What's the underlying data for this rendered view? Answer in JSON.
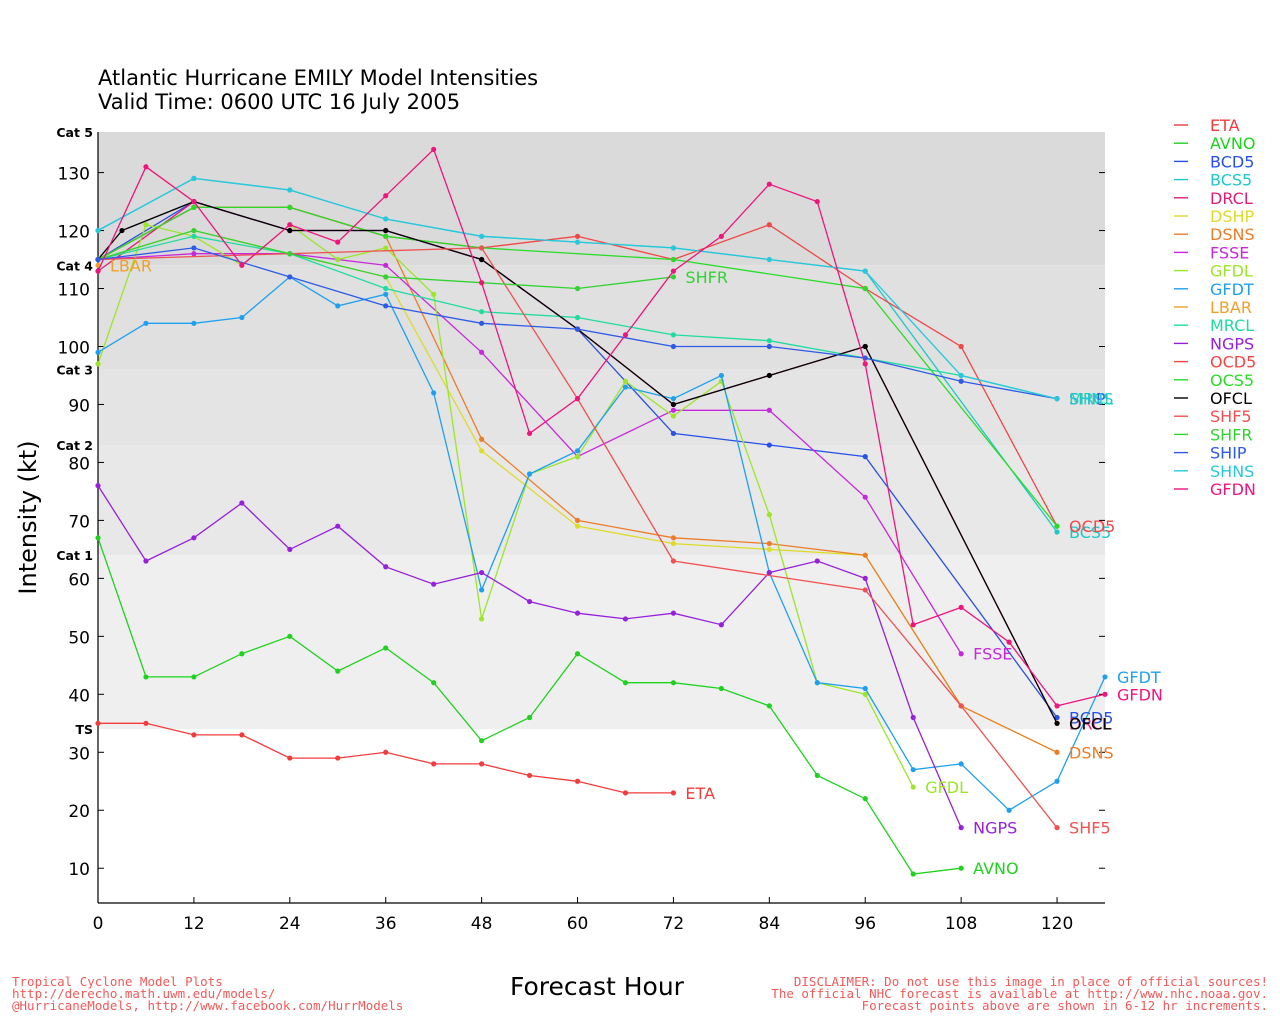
{
  "title": {
    "line1": "Atlantic Hurricane EMILY Model Intensities",
    "line2": "Valid Time: 0600 UTC 16 July 2005"
  },
  "footer": {
    "left": [
      "Tropical Cyclone Model Plots",
      "http://derecho.math.uwm.edu/models/",
      "@HurricaneModels, http://www.facebook.com/HurrModels"
    ],
    "center": "Forecast Hour",
    "right": [
      "DISCLAIMER: Do not use this image in place of official sources!",
      "The official NHC forecast is available at http://www.nhc.noaa.gov.",
      "Forecast points above are shown in 6-12 hr increments."
    ]
  },
  "chart_data": {
    "type": "line",
    "title": "Atlantic Hurricane EMILY Model Intensities",
    "subtitle": "Valid Time: 0600 UTC 16 July 2005",
    "xlabel": "Forecast Hour",
    "ylabel": "Intensity (kt)",
    "xlim": [
      0,
      126
    ],
    "ylim": [
      4,
      137
    ],
    "xticks": [
      0,
      12,
      24,
      36,
      48,
      60,
      72,
      84,
      96,
      108,
      120
    ],
    "yticks": [
      10,
      20,
      30,
      40,
      50,
      60,
      70,
      80,
      90,
      100,
      110,
      120,
      130
    ],
    "legend_position": "right",
    "category_bands": [
      {
        "label": "TS",
        "min": 34,
        "max": 64,
        "color": "#efefef"
      },
      {
        "label": "Cat 1",
        "min": 64,
        "max": 83,
        "color": "#e8e8e8"
      },
      {
        "label": "Cat 2",
        "min": 83,
        "max": 96,
        "color": "#e4e4e4"
      },
      {
        "label": "Cat 3",
        "min": 96,
        "max": 114,
        "color": "#e0e0e0"
      },
      {
        "label": "Cat 4",
        "min": 114,
        "max": 137,
        "color": "#dadada"
      },
      {
        "label": "Cat 5",
        "min": 137,
        "max": 137,
        "color": "#dadada"
      }
    ],
    "series": [
      {
        "name": "ETA",
        "color": "#f03c3c",
        "end_label": "ETA",
        "points": [
          [
            0,
            35
          ],
          [
            6,
            35
          ],
          [
            12,
            33
          ],
          [
            18,
            33
          ],
          [
            24,
            29
          ],
          [
            30,
            29
          ],
          [
            36,
            30
          ],
          [
            42,
            28
          ],
          [
            48,
            28
          ],
          [
            54,
            26
          ],
          [
            60,
            25
          ],
          [
            66,
            23
          ],
          [
            72,
            23
          ]
        ]
      },
      {
        "name": "AVNO",
        "color": "#1ed21e",
        "end_label": "AVNO",
        "points": [
          [
            0,
            67
          ],
          [
            6,
            43
          ],
          [
            12,
            43
          ],
          [
            18,
            47
          ],
          [
            24,
            50
          ],
          [
            30,
            44
          ],
          [
            36,
            48
          ],
          [
            42,
            42
          ],
          [
            48,
            32
          ],
          [
            54,
            36
          ],
          [
            60,
            47
          ],
          [
            66,
            42
          ],
          [
            72,
            42
          ],
          [
            78,
            41
          ],
          [
            84,
            38
          ],
          [
            90,
            26
          ],
          [
            96,
            22
          ],
          [
            102,
            9
          ],
          [
            108,
            10
          ]
        ]
      },
      {
        "name": "BCD5",
        "color": "#2850e6",
        "end_label": "BCD5",
        "points": [
          [
            0,
            115
          ],
          [
            12,
            125
          ],
          [
            24,
            120
          ],
          [
            36,
            120
          ],
          [
            48,
            115
          ],
          [
            60,
            103
          ],
          [
            72,
            85
          ],
          [
            84,
            83
          ],
          [
            96,
            81
          ],
          [
            120,
            36
          ]
        ]
      },
      {
        "name": "BCS5",
        "color": "#1ec8c8",
        "end_label": "BCS5",
        "points": [
          [
            0,
            120
          ],
          [
            12,
            129
          ],
          [
            24,
            127
          ],
          [
            36,
            122
          ],
          [
            48,
            119
          ],
          [
            72,
            117
          ],
          [
            96,
            113
          ],
          [
            120,
            68
          ]
        ]
      },
      {
        "name": "DRCL",
        "color": "#dc1e78",
        "end_label": "DRCL",
        "points": [
          [
            0,
            113
          ],
          [
            12,
            125
          ],
          [
            24,
            120
          ],
          [
            36,
            120
          ],
          [
            48,
            115
          ],
          [
            60,
            103
          ],
          [
            72,
            90
          ],
          [
            84,
            95
          ],
          [
            96,
            100
          ],
          [
            120,
            35
          ]
        ]
      },
      {
        "name": "DSHP",
        "color": "#dcdc28",
        "end_label": "",
        "points": [
          [
            0,
            115
          ],
          [
            12,
            120
          ],
          [
            24,
            116
          ],
          [
            36,
            112
          ],
          [
            48,
            82
          ],
          [
            60,
            69
          ],
          [
            72,
            66
          ],
          [
            84,
            65
          ],
          [
            96,
            64
          ],
          [
            108,
            38
          ],
          [
            120,
            30
          ]
        ]
      },
      {
        "name": "DSNS",
        "color": "#ec7d28",
        "end_label": "DSNS",
        "points": [
          [
            0,
            115
          ],
          [
            12,
            124
          ],
          [
            24,
            124
          ],
          [
            36,
            119
          ],
          [
            48,
            84
          ],
          [
            60,
            70
          ],
          [
            72,
            67
          ],
          [
            84,
            66
          ],
          [
            96,
            64
          ],
          [
            108,
            38
          ],
          [
            120,
            30
          ]
        ]
      },
      {
        "name": "FSSE",
        "color": "#c828dc",
        "end_label": "FSSE",
        "points": [
          [
            0,
            115
          ],
          [
            12,
            116
          ],
          [
            24,
            116
          ],
          [
            36,
            114
          ],
          [
            48,
            99
          ],
          [
            60,
            81
          ],
          [
            72,
            89
          ],
          [
            84,
            89
          ],
          [
            96,
            74
          ],
          [
            108,
            47
          ]
        ]
      },
      {
        "name": "GFDL",
        "color": "#9be628",
        "end_label": "GFDL",
        "points": [
          [
            0,
            97
          ],
          [
            6,
            121
          ],
          [
            12,
            119
          ],
          [
            18,
            114
          ],
          [
            24,
            121
          ],
          [
            30,
            115
          ],
          [
            36,
            117
          ],
          [
            42,
            109
          ],
          [
            48,
            53
          ],
          [
            54,
            78
          ],
          [
            60,
            81
          ],
          [
            66,
            94
          ],
          [
            72,
            88
          ],
          [
            78,
            94
          ],
          [
            84,
            71
          ],
          [
            90,
            42
          ],
          [
            96,
            40
          ],
          [
            102,
            24
          ]
        ]
      },
      {
        "name": "GFDT",
        "color": "#1ea0f0",
        "end_label": "GFDT",
        "points": [
          [
            0,
            99
          ],
          [
            6,
            104
          ],
          [
            12,
            104
          ],
          [
            18,
            105
          ],
          [
            24,
            112
          ],
          [
            30,
            107
          ],
          [
            36,
            109
          ],
          [
            42,
            92
          ],
          [
            48,
            58
          ],
          [
            54,
            78
          ],
          [
            60,
            82
          ],
          [
            66,
            93
          ],
          [
            72,
            91
          ],
          [
            78,
            95
          ],
          [
            84,
            61
          ],
          [
            90,
            42
          ],
          [
            96,
            41
          ],
          [
            102,
            27
          ],
          [
            108,
            28
          ],
          [
            114,
            20
          ],
          [
            120,
            25
          ],
          [
            126,
            43
          ]
        ]
      },
      {
        "name": "LBAR",
        "color": "#f0a028",
        "end_label": "LBAR",
        "points": [
          [
            0,
            114
          ]
        ]
      },
      {
        "name": "MRCL",
        "color": "#1edca0",
        "end_label": "MRCL",
        "points": [
          [
            0,
            115
          ],
          [
            12,
            119
          ],
          [
            24,
            116
          ],
          [
            36,
            110
          ],
          [
            48,
            106
          ],
          [
            60,
            105
          ],
          [
            72,
            102
          ],
          [
            84,
            101
          ],
          [
            96,
            98
          ],
          [
            108,
            95
          ],
          [
            120,
            91
          ]
        ]
      },
      {
        "name": "NGPS",
        "color": "#9620dc",
        "end_label": "NGPS",
        "points": [
          [
            0,
            76
          ],
          [
            6,
            63
          ],
          [
            12,
            67
          ],
          [
            18,
            73
          ],
          [
            24,
            65
          ],
          [
            30,
            69
          ],
          [
            36,
            62
          ],
          [
            42,
            59
          ],
          [
            48,
            61
          ],
          [
            54,
            56
          ],
          [
            60,
            54
          ],
          [
            66,
            53
          ],
          [
            72,
            54
          ],
          [
            78,
            52
          ],
          [
            84,
            61
          ],
          [
            90,
            63
          ],
          [
            96,
            60
          ],
          [
            102,
            36
          ],
          [
            108,
            17
          ]
        ]
      },
      {
        "name": "OCD5",
        "color": "#f04646",
        "end_label": "OCD5",
        "points": [
          [
            0,
            115
          ],
          [
            12,
            124
          ],
          [
            24,
            124
          ],
          [
            36,
            119
          ],
          [
            48,
            117
          ],
          [
            60,
            119
          ],
          [
            72,
            115
          ],
          [
            84,
            121
          ],
          [
            96,
            110
          ],
          [
            108,
            100
          ],
          [
            120,
            69
          ]
        ]
      },
      {
        "name": "OCS5",
        "color": "#28dc28",
        "end_label": "",
        "points": [
          [
            0,
            115
          ],
          [
            12,
            124
          ],
          [
            24,
            124
          ],
          [
            36,
            119
          ],
          [
            48,
            117
          ],
          [
            72,
            115
          ],
          [
            96,
            110
          ],
          [
            120,
            69
          ]
        ]
      },
      {
        "name": "OFCL",
        "color": "#000000",
        "end_label": "OFCL",
        "points": [
          [
            0,
            115
          ],
          [
            3,
            120
          ],
          [
            12,
            125
          ],
          [
            24,
            120
          ],
          [
            36,
            120
          ],
          [
            48,
            115
          ],
          [
            60,
            103
          ],
          [
            72,
            90
          ],
          [
            84,
            95
          ],
          [
            96,
            100
          ],
          [
            120,
            35
          ]
        ]
      },
      {
        "name": "SHF5",
        "color": "#f05050",
        "end_label": "SHF5",
        "points": [
          [
            0,
            115
          ],
          [
            48,
            117
          ],
          [
            60,
            91
          ],
          [
            72,
            63
          ],
          [
            96,
            58
          ],
          [
            108,
            38
          ],
          [
            120,
            17
          ]
        ]
      },
      {
        "name": "SHFR",
        "color": "#32d232",
        "end_label": "SHFR",
        "points": [
          [
            0,
            115
          ],
          [
            12,
            120
          ],
          [
            24,
            116
          ],
          [
            36,
            112
          ],
          [
            48,
            111
          ],
          [
            60,
            110
          ],
          [
            72,
            112
          ]
        ]
      },
      {
        "name": "SHIP",
        "color": "#2d5ae6",
        "end_label": "SHIP",
        "points": [
          [
            0,
            115
          ],
          [
            12,
            117
          ],
          [
            24,
            112
          ],
          [
            36,
            107
          ],
          [
            48,
            104
          ],
          [
            60,
            103
          ],
          [
            72,
            100
          ],
          [
            84,
            100
          ],
          [
            96,
            98
          ],
          [
            108,
            94
          ],
          [
            120,
            91
          ]
        ]
      },
      {
        "name": "SHNS",
        "color": "#28c8dc",
        "end_label": "SHNS",
        "points": [
          [
            0,
            120
          ],
          [
            12,
            129
          ],
          [
            24,
            127
          ],
          [
            36,
            122
          ],
          [
            48,
            119
          ],
          [
            60,
            118
          ],
          [
            72,
            117
          ],
          [
            84,
            115
          ],
          [
            96,
            113
          ],
          [
            108,
            95
          ],
          [
            120,
            91
          ]
        ]
      },
      {
        "name": "GFDN",
        "color": "#f0147d",
        "end_label": "GFDN",
        "points": [
          [
            0,
            113
          ],
          [
            6,
            131
          ],
          [
            12,
            125
          ],
          [
            18,
            114
          ],
          [
            24,
            121
          ],
          [
            30,
            118
          ],
          [
            36,
            126
          ],
          [
            42,
            134
          ],
          [
            48,
            111
          ],
          [
            54,
            85
          ],
          [
            60,
            91
          ],
          [
            66,
            102
          ],
          [
            72,
            113
          ],
          [
            78,
            119
          ],
          [
            84,
            128
          ],
          [
            90,
            125
          ],
          [
            96,
            97
          ],
          [
            102,
            52
          ],
          [
            108,
            55
          ],
          [
            114,
            49
          ],
          [
            120,
            38
          ],
          [
            126,
            40
          ]
        ]
      }
    ]
  }
}
